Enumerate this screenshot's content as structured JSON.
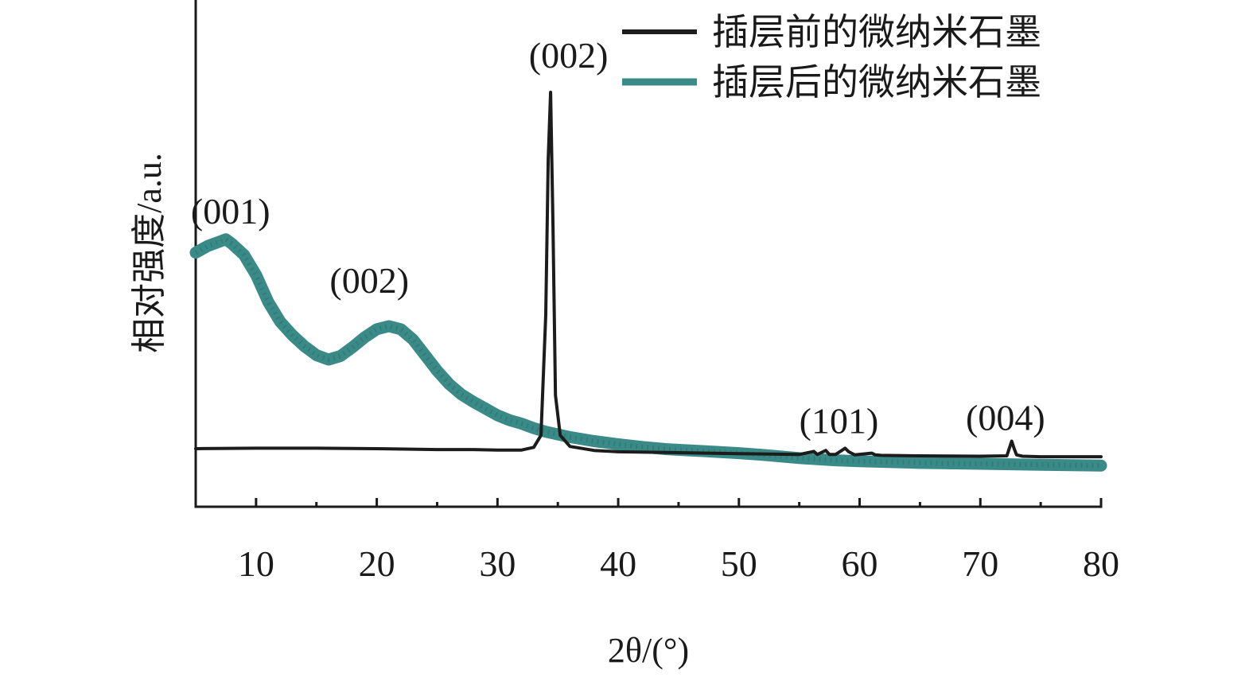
{
  "chart_data": {
    "type": "line",
    "xlabel": "2θ/(°)",
    "ylabel": "相对强度/a.u.",
    "xlim": [
      5,
      80
    ],
    "ylim": [
      0,
      100
    ],
    "x_ticks": [
      10,
      20,
      30,
      40,
      50,
      60,
      70,
      80
    ],
    "minor_ticks": [
      15,
      25,
      35,
      45,
      55,
      65,
      75
    ],
    "legend_position": "top-right",
    "grid": false,
    "series": [
      {
        "name": "插层前的微纳米石墨",
        "color": "#1c1c1c",
        "x": [
          5,
          10,
          15,
          20,
          25,
          28,
          30,
          32,
          33,
          33.6,
          34.0,
          34.2,
          34.4,
          34.6,
          34.8,
          35.2,
          36,
          38,
          40,
          45,
          50,
          55,
          56.2,
          56.5,
          57.2,
          57.5,
          58.0,
          58.8,
          59.1,
          59.6,
          61.0,
          61.3,
          61.8,
          65,
          70,
          72.2,
          72.6,
          72.8,
          73.0,
          73.5,
          75,
          80
        ],
        "y": [
          10.0,
          10.1,
          10.1,
          10.0,
          9.8,
          9.8,
          9.7,
          9.7,
          10.3,
          13.0,
          40.0,
          75.0,
          90.0,
          60.0,
          22.0,
          13.0,
          10.5,
          9.6,
          9.3,
          9.1,
          8.9,
          8.7,
          9.4,
          8.7,
          9.6,
          8.7,
          8.7,
          10.1,
          9.3,
          8.6,
          9.0,
          8.6,
          8.5,
          8.4,
          8.3,
          8.4,
          11.7,
          10.0,
          8.6,
          8.3,
          8.2,
          8.2
        ]
      },
      {
        "name": "插层后的微纳米石墨",
        "color": "#3a8a88",
        "x": [
          5,
          6,
          7,
          7.5,
          8,
          9,
          10,
          11,
          12,
          13,
          14,
          15,
          16,
          17,
          18,
          19,
          20,
          21,
          22,
          23,
          24,
          25,
          26,
          27,
          28,
          29,
          30,
          31,
          32,
          33,
          34,
          35,
          36,
          38,
          40,
          42,
          44,
          46,
          48,
          50,
          52,
          55,
          58,
          60,
          65,
          70,
          75,
          80
        ],
        "y": [
          54.0,
          55.5,
          56.5,
          57.0,
          56.0,
          53.5,
          49.0,
          43.0,
          38.5,
          35.5,
          33.0,
          31.0,
          30.0,
          30.8,
          32.8,
          35.0,
          36.8,
          37.5,
          36.8,
          34.5,
          31.0,
          27.5,
          24.5,
          22.2,
          20.5,
          19.0,
          17.5,
          16.4,
          15.6,
          14.6,
          13.8,
          13.2,
          12.6,
          11.7,
          11.0,
          10.4,
          9.9,
          9.6,
          9.3,
          9.0,
          8.6,
          7.9,
          7.4,
          7.2,
          6.8,
          6.6,
          6.4,
          6.2
        ]
      }
    ],
    "annotations": [
      {
        "text": "(001)",
        "x": 4.6,
        "y": 60.5
      },
      {
        "text": "(002)",
        "x": 16.1,
        "y": 45.0
      },
      {
        "text": "(002)",
        "x": 32.6,
        "y": 95.5
      },
      {
        "text": "(101)",
        "x": 55.0,
        "y": 13.5
      },
      {
        "text": "(004)",
        "x": 68.8,
        "y": 14.2
      }
    ]
  }
}
